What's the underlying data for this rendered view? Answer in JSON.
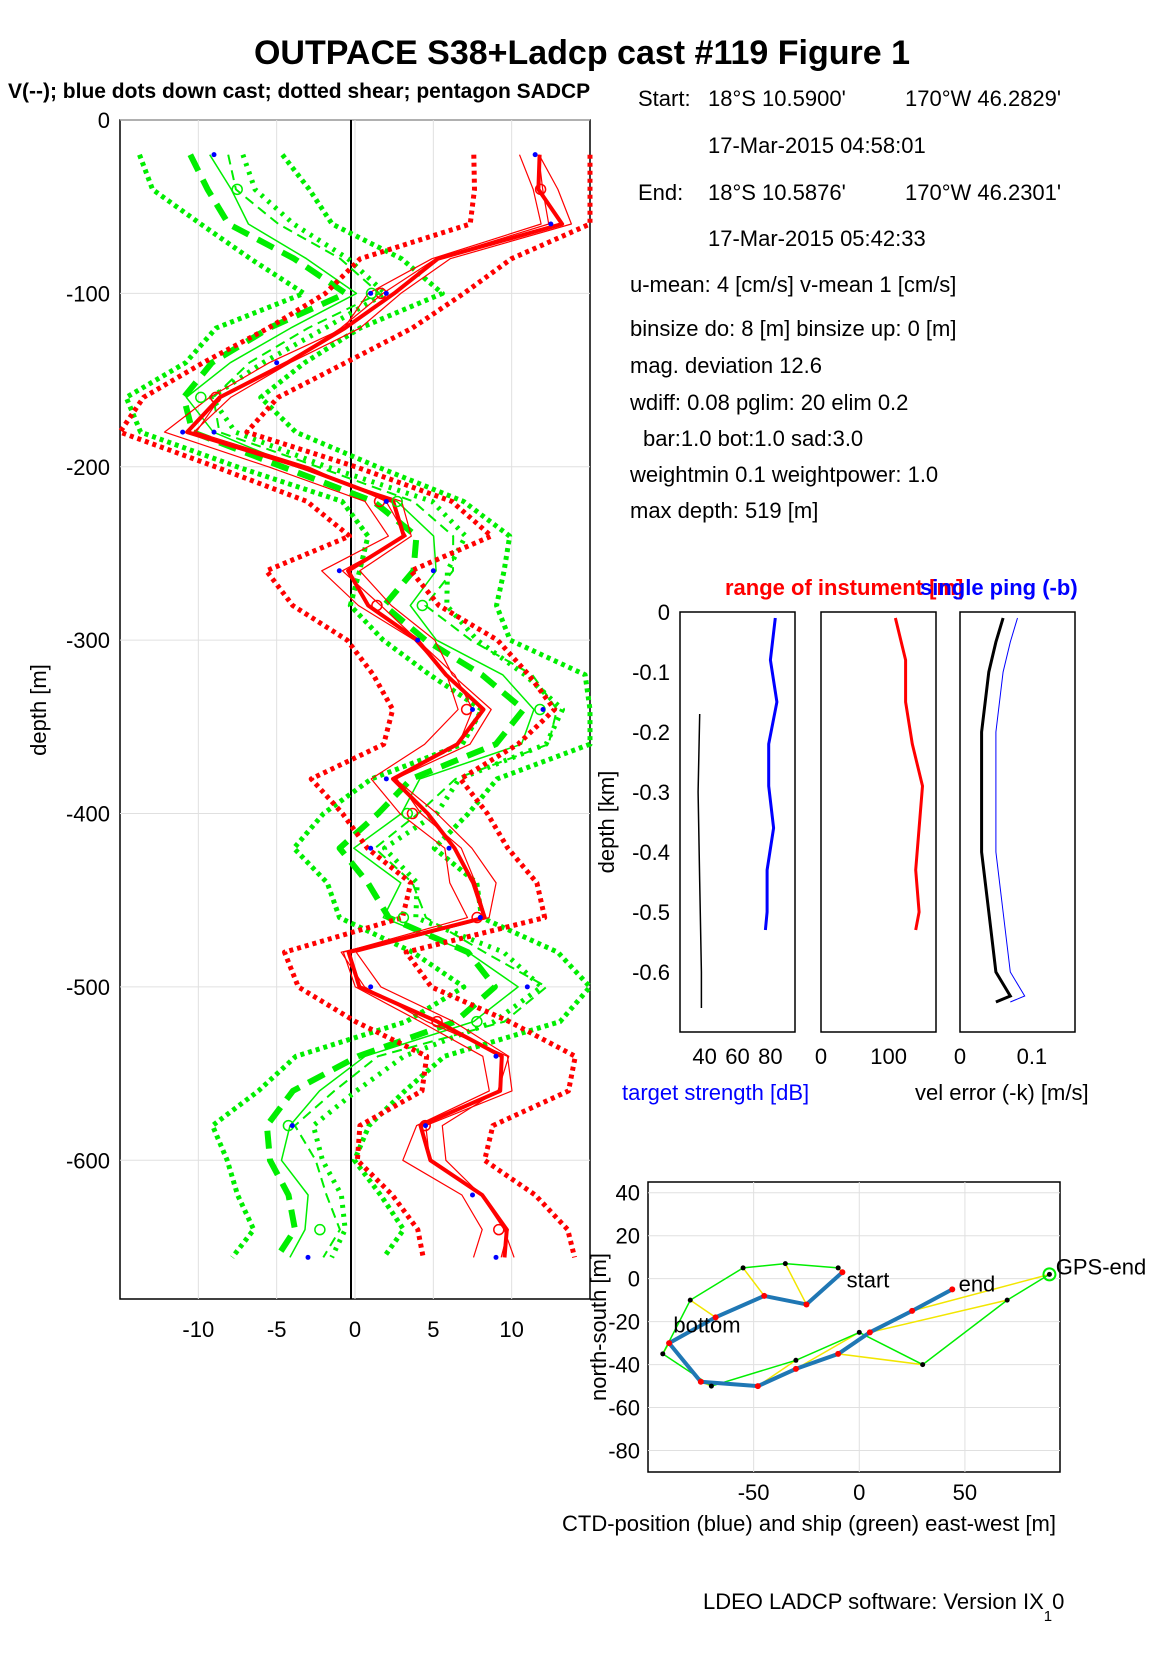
{
  "header": {
    "title": "OUTPACE S38+Ladcp cast #119  Figure 1",
    "subtitle": "V(--); blue dots down cast; dotted shear; pentagon SADCP"
  },
  "info": {
    "start_label": "Start:",
    "start_lat": "18°S 10.5900'",
    "start_lon": "170°W 46.2829'",
    "start_time": "17-Mar-2015 04:58:01",
    "end_label": "End:",
    "end_lat": "18°S 10.5876'",
    "end_lon": "170°W 46.2301'",
    "end_time": "17-Mar-2015 05:42:33",
    "umean": "u-mean:   4 [cm/s]    v-mean   1 [cm/s]",
    "binsize": "binsize do: 8 [m]  binsize up:  0 [m]",
    "magdev": "mag. deviation 12.6",
    "wdiff": "wdiff: 0.08  pglim: 20  elim 0.2",
    "bar": "bar:1.0 bot:1.0 sad:3.0",
    "weight": "weightmin 0.1  weightpower: 1.0",
    "maxdepth": "max depth: 519 [m]"
  },
  "footer": "LDEO LADCP software: Version IX",
  "footer_sub": "1",
  "footer_tail": "0",
  "colors": {
    "red": "#ff0000",
    "green": "#00ee00",
    "blue": "#0000ff",
    "ctd": "#1f77b4",
    "yellow": "#f2e600",
    "black": "#000000"
  },
  "chart_data": [
    {
      "type": "line",
      "id": "velocity-profile",
      "ylabel": "depth [m]",
      "xlim": [
        -15,
        15
      ],
      "ylim": [
        -680,
        0
      ],
      "xticks": [
        -10,
        -5,
        0,
        5,
        10
      ],
      "yticks": [
        0,
        -100,
        -200,
        -300,
        -400,
        -500,
        -600
      ],
      "depth": [
        -20,
        -40,
        -60,
        -80,
        -100,
        -120,
        -140,
        -160,
        -180,
        -200,
        -220,
        -240,
        -260,
        -280,
        -300,
        -320,
        -340,
        -360,
        -380,
        -400,
        -420,
        -440,
        -460,
        -480,
        -500,
        -520,
        -540,
        -560,
        -580,
        -600,
        -620,
        -640,
        -656
      ],
      "series": [
        {
          "color": "red",
          "values": [
            11.5,
            11.5,
            12.5,
            5,
            2,
            -0.5,
            -5,
            -9,
            -11,
            -4,
            2,
            3.5,
            -1,
            1,
            4,
            6,
            7.5,
            6,
            2,
            4,
            6,
            7.5,
            8,
            -0.5,
            1,
            5,
            9,
            9,
            4.5,
            4.5,
            7.5,
            9,
            9
          ]
        },
        {
          "color": "green",
          "values": [
            -9,
            -8,
            -6,
            -2,
            1,
            -4,
            -7,
            -10,
            -9,
            -3,
            3,
            5,
            5,
            4,
            6,
            10,
            12,
            11,
            5,
            3,
            1,
            3,
            3,
            8,
            11,
            8,
            1,
            -2,
            -4,
            -4,
            -3,
            -2,
            -3
          ]
        }
      ]
    },
    {
      "type": "line",
      "id": "target-strength",
      "xlabel": "target strength [dB]",
      "ylabel": "depth [km]",
      "xticks": [
        "40",
        "60",
        "80"
      ],
      "yticks": [
        "0",
        "-0.1",
        "-0.2",
        "-0.3",
        "-0.4",
        "-0.5",
        "-0.6"
      ],
      "depth": [
        -0.01,
        -0.08,
        -0.15,
        -0.22,
        -0.29,
        -0.36,
        -0.43,
        -0.5,
        -0.53
      ],
      "values": [
        83,
        80,
        84,
        79,
        79,
        82,
        78,
        78,
        77
      ]
    },
    {
      "type": "line",
      "id": "range-of-instrument",
      "title": "range of instument [m]",
      "xticks": [
        "0",
        "100"
      ],
      "depth": [
        -0.01,
        -0.08,
        -0.15,
        -0.22,
        -0.29,
        -0.36,
        -0.43,
        -0.5,
        -0.53
      ],
      "values": [
        110,
        125,
        125,
        135,
        150,
        145,
        140,
        145,
        140
      ]
    },
    {
      "type": "line",
      "id": "single-ping-error",
      "title": "single ping (-b)",
      "xlabel": "vel error (-k) [m/s]",
      "xticks": [
        "0",
        "0.1"
      ],
      "depth": [
        -0.01,
        -0.05,
        -0.1,
        -0.2,
        -0.3,
        -0.4,
        -0.5,
        -0.6,
        -0.64,
        -0.65
      ],
      "values": [
        0.06,
        0.05,
        0.04,
        0.03,
        0.03,
        0.03,
        0.04,
        0.05,
        0.07,
        0.05
      ]
    },
    {
      "type": "scatter",
      "id": "ctd-position",
      "xlabel": "CTD-position (blue) and ship (green) east-west [m]",
      "ylabel": "north-south [m]",
      "xlim": [
        -100,
        95
      ],
      "ylim": [
        -90,
        45
      ],
      "xticks": [
        -50,
        0,
        50
      ],
      "yticks": [
        40,
        20,
        0,
        -20,
        -40,
        -60,
        -80
      ],
      "labels": {
        "start": "start",
        "end": "end",
        "bottom": "bottom",
        "gps_end": "GPS-end"
      },
      "ctd_x": [
        -8,
        -25,
        -45,
        -68,
        -90,
        -75,
        -48,
        -30,
        -10,
        5,
        25,
        44
      ],
      "ctd_y": [
        3,
        -12,
        -8,
        -18,
        -30,
        -48,
        -50,
        -42,
        -35,
        -25,
        -15,
        -5
      ],
      "ship_x": [
        -10,
        -35,
        -55,
        -80,
        -93,
        -70,
        -30,
        0,
        30,
        70,
        90
      ],
      "ship_y": [
        5,
        7,
        5,
        -10,
        -35,
        -50,
        -38,
        -25,
        -40,
        -10,
        2
      ]
    }
  ]
}
